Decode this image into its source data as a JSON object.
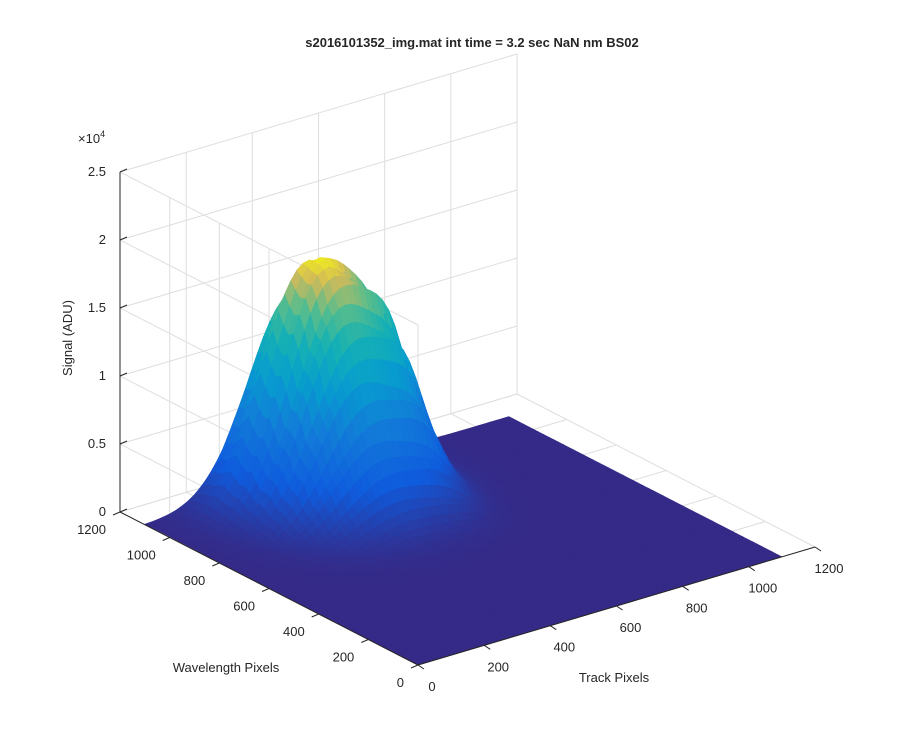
{
  "chart_data": {
    "type": "surface",
    "title": "s2016101352_img.mat int time = 3.2 sec  NaN nm BS02",
    "xlabel": "Track Pixels",
    "ylabel": "Wavelength Pixels",
    "zlabel": "Signal (ADU)",
    "x_ticks": [
      "0",
      "200",
      "400",
      "600",
      "800",
      "1000",
      "1200"
    ],
    "y_ticks": [
      "0",
      "200",
      "400",
      "600",
      "800",
      "1000",
      "1200"
    ],
    "z_ticks": [
      "0",
      "0.5",
      "1",
      "1.5",
      "2",
      "2.5"
    ],
    "z_exponent_label": "×10",
    "z_exponent_power": "4",
    "xlim": [
      0,
      1200
    ],
    "ylim": [
      0,
      1200
    ],
    "zlim": [
      0,
      25000
    ],
    "grid": true,
    "colormap": "parula",
    "surface_extent": {
      "x": [
        0,
        1100
      ],
      "y": [
        0,
        1100
      ]
    },
    "peak": {
      "x": 440,
      "y": 960,
      "z": 17000
    },
    "surface_floor": 0
  }
}
